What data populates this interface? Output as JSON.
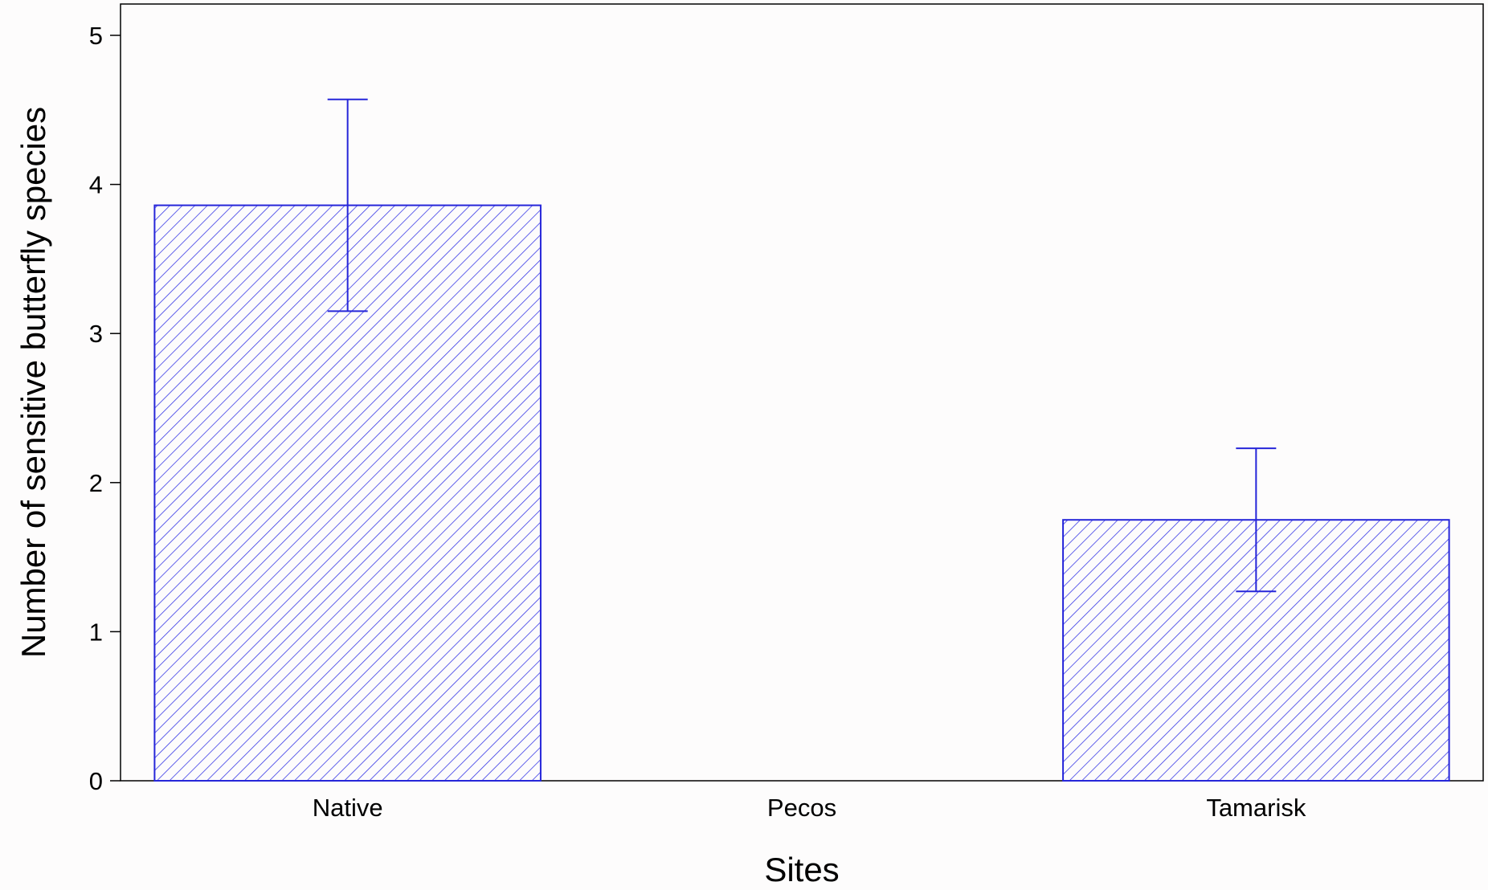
{
  "chart_data": {
    "type": "bar",
    "title": "",
    "xlabel": "Sites",
    "ylabel": "Number of sensitive butterfly species",
    "categories": [
      "Native",
      "Pecos",
      "Tamarisk"
    ],
    "values": [
      3.86,
      0,
      1.75
    ],
    "error_bars": [
      {
        "lower": 3.15,
        "upper": 4.57
      },
      null,
      {
        "lower": 1.27,
        "upper": 2.23
      }
    ],
    "ylim": [
      0,
      5.2
    ],
    "yticks": [
      "0",
      "1",
      "2",
      "3",
      "4",
      "5"
    ],
    "grid": false,
    "legend": "none",
    "bar_style": "diagonal-hatch",
    "colors": {
      "bar_stroke": "#2626d9",
      "hatch": "#3a3ae6",
      "error_bar": "#2626d9",
      "axis": "#000000",
      "background": "#fdfcfc"
    }
  }
}
